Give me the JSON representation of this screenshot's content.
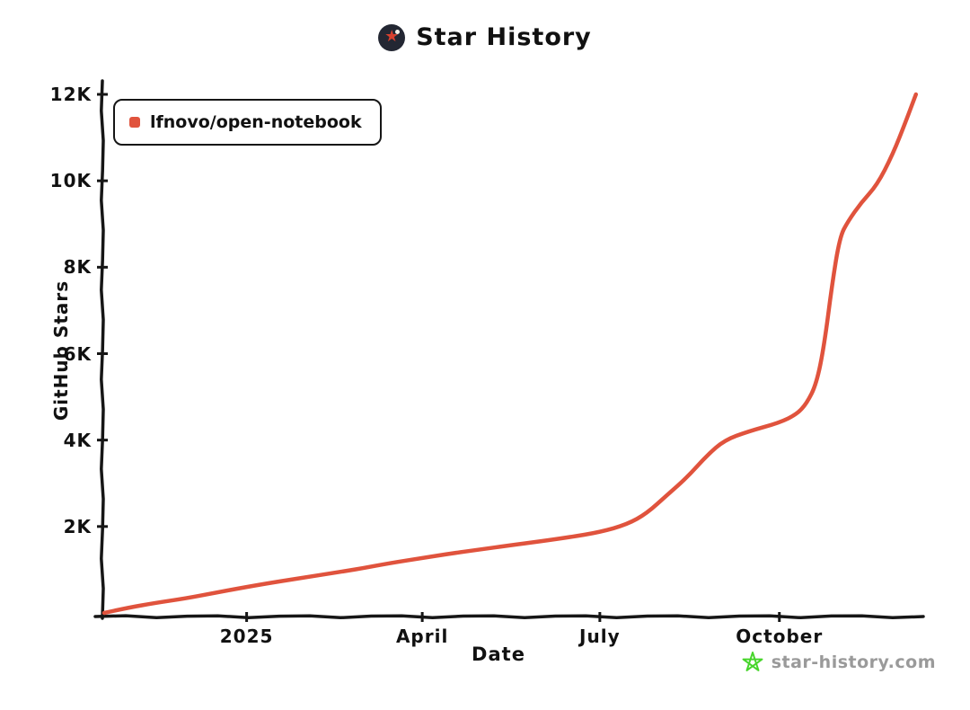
{
  "header": {
    "title": "Star History",
    "logo_icon": "star-history-logo"
  },
  "legend": {
    "label": "lfnovo/open-notebook",
    "marker_color": "#e0533d"
  },
  "watermark": {
    "text": "star-history.com",
    "star_color": "#47d52b",
    "text_color": "#9a9a9a"
  },
  "chart_data": {
    "type": "line",
    "title": "Star History",
    "xlabel": "Date",
    "ylabel": "GitHub Stars",
    "grid": false,
    "legend_position": "top-left",
    "ylim": [
      0,
      12000
    ],
    "x_domain": [
      "2024-10-20",
      "2025-12-11"
    ],
    "axis_color": "#161616",
    "y_ticks": [
      {
        "label": "2K",
        "value": 2000
      },
      {
        "label": "4K",
        "value": 4000
      },
      {
        "label": "6K",
        "value": 6000
      },
      {
        "label": "8K",
        "value": 8000
      },
      {
        "label": "10K",
        "value": 10000
      },
      {
        "label": "12K",
        "value": 12000
      }
    ],
    "x_ticks": [
      {
        "label": "2025",
        "date": "2025-01-01"
      },
      {
        "label": "April",
        "date": "2025-04-01"
      },
      {
        "label": "July",
        "date": "2025-07-01"
      },
      {
        "label": "October",
        "date": "2025-10-01"
      }
    ],
    "series": [
      {
        "name": "lfnovo/open-notebook",
        "color": "#e0533d",
        "points": [
          {
            "date": "2024-10-20",
            "stars": 0
          },
          {
            "date": "2024-11-01",
            "stars": 120
          },
          {
            "date": "2024-11-15",
            "stars": 230
          },
          {
            "date": "2024-12-01",
            "stars": 340
          },
          {
            "date": "2024-12-15",
            "stars": 460
          },
          {
            "date": "2025-01-01",
            "stars": 600
          },
          {
            "date": "2025-01-15",
            "stars": 710
          },
          {
            "date": "2025-02-01",
            "stars": 830
          },
          {
            "date": "2025-02-15",
            "stars": 930
          },
          {
            "date": "2025-03-01",
            "stars": 1030
          },
          {
            "date": "2025-03-15",
            "stars": 1150
          },
          {
            "date": "2025-04-01",
            "stars": 1270
          },
          {
            "date": "2025-04-15",
            "stars": 1370
          },
          {
            "date": "2025-05-01",
            "stars": 1470
          },
          {
            "date": "2025-05-15",
            "stars": 1560
          },
          {
            "date": "2025-06-01",
            "stars": 1660
          },
          {
            "date": "2025-06-15",
            "stars": 1750
          },
          {
            "date": "2025-07-01",
            "stars": 1870
          },
          {
            "date": "2025-07-15",
            "stars": 2050
          },
          {
            "date": "2025-07-25",
            "stars": 2300
          },
          {
            "date": "2025-08-05",
            "stars": 2750
          },
          {
            "date": "2025-08-15",
            "stars": 3150
          },
          {
            "date": "2025-08-25",
            "stars": 3650
          },
          {
            "date": "2025-09-03",
            "stars": 4000
          },
          {
            "date": "2025-09-15",
            "stars": 4200
          },
          {
            "date": "2025-10-01",
            "stars": 4400
          },
          {
            "date": "2025-10-10",
            "stars": 4600
          },
          {
            "date": "2025-10-15",
            "stars": 4850
          },
          {
            "date": "2025-10-20",
            "stars": 5300
          },
          {
            "date": "2025-10-24",
            "stars": 6200
          },
          {
            "date": "2025-10-28",
            "stars": 7600
          },
          {
            "date": "2025-11-01",
            "stars": 8700
          },
          {
            "date": "2025-11-05",
            "stars": 9050
          },
          {
            "date": "2025-11-12",
            "stars": 9500
          },
          {
            "date": "2025-11-20",
            "stars": 9900
          },
          {
            "date": "2025-11-28",
            "stars": 10600
          },
          {
            "date": "2025-12-05",
            "stars": 11400
          },
          {
            "date": "2025-12-10",
            "stars": 12000
          }
        ]
      }
    ]
  }
}
